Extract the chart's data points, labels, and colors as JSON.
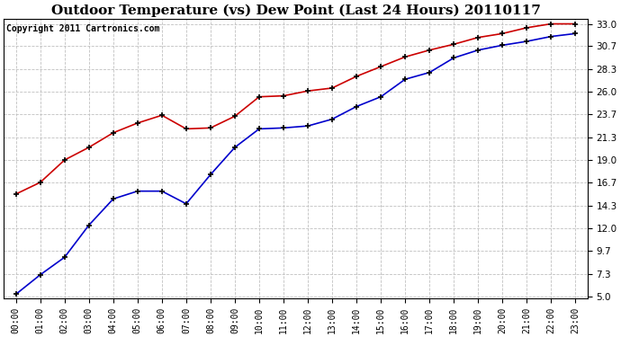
{
  "title": "Outdoor Temperature (vs) Dew Point (Last 24 Hours) 20110117",
  "copyright": "Copyright 2011 Cartronics.com",
  "x_labels": [
    "00:00",
    "01:00",
    "02:00",
    "03:00",
    "04:00",
    "05:00",
    "06:00",
    "07:00",
    "08:00",
    "09:00",
    "10:00",
    "11:00",
    "12:00",
    "13:00",
    "14:00",
    "15:00",
    "16:00",
    "17:00",
    "18:00",
    "19:00",
    "20:00",
    "21:00",
    "22:00",
    "23:00"
  ],
  "red_data": [
    15.5,
    16.7,
    19.0,
    20.3,
    21.8,
    22.8,
    23.6,
    22.2,
    22.3,
    23.5,
    25.5,
    25.6,
    26.1,
    26.4,
    27.6,
    28.6,
    29.6,
    30.3,
    30.9,
    31.6,
    32.0,
    32.6,
    33.0,
    33.0
  ],
  "blue_data": [
    5.2,
    7.2,
    9.0,
    12.3,
    15.0,
    15.8,
    15.8,
    14.5,
    17.5,
    20.3,
    22.2,
    22.3,
    22.5,
    23.2,
    24.5,
    25.5,
    27.3,
    28.0,
    29.5,
    30.3,
    30.8,
    31.2,
    31.7,
    32.0
  ],
  "red_color": "#cc0000",
  "blue_color": "#0000cc",
  "bg_color": "#ffffff",
  "grid_color": "#c0c0c0",
  "yticks": [
    5.0,
    7.3,
    9.7,
    12.0,
    14.3,
    16.7,
    19.0,
    21.3,
    23.7,
    26.0,
    28.3,
    30.7,
    33.0
  ],
  "ylim": [
    4.8,
    33.5
  ],
  "title_fontsize": 11,
  "copyright_fontsize": 7,
  "tick_fontsize": 7,
  "ytick_fontsize": 7.5
}
